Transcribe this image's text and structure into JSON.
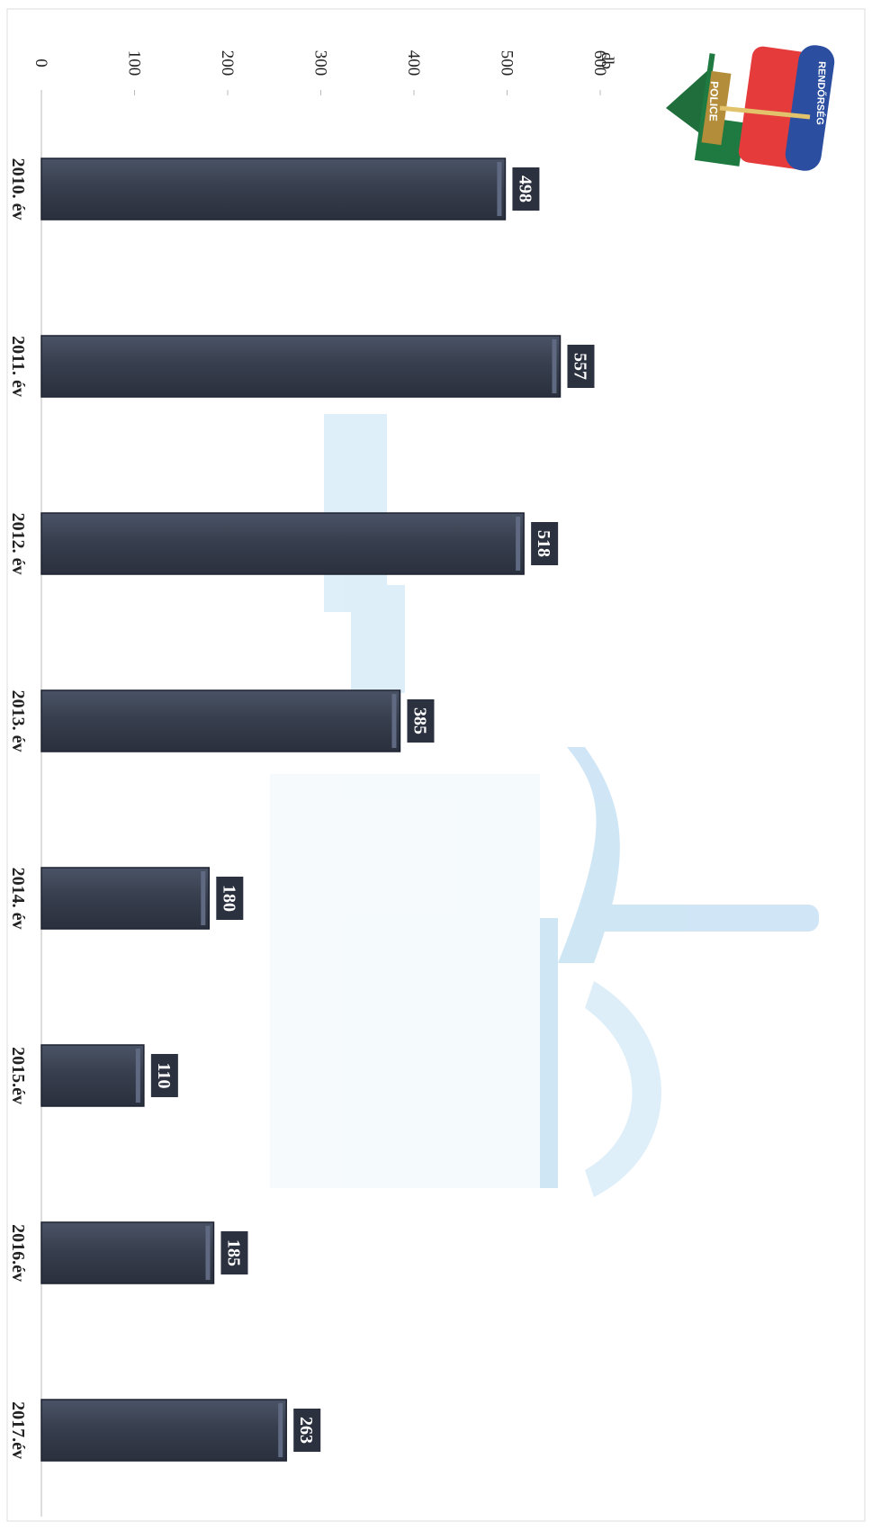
{
  "chart_data": {
    "type": "bar",
    "orientation": "rotated-90-clockwise",
    "unit_label": "db",
    "categories": [
      "2010. év",
      "2011. év",
      "2012. év",
      "2013. év",
      "2014. év",
      "2015.év",
      "2016.év",
      "2017.év"
    ],
    "values": [
      498,
      557,
      518,
      385,
      180,
      110,
      185,
      263
    ],
    "data_labels": [
      "498",
      "557",
      "518",
      "385",
      "180",
      "110",
      "185",
      "263"
    ],
    "ylim": [
      0,
      600
    ],
    "yticks": [
      0,
      100,
      200,
      300,
      400,
      500,
      600
    ],
    "ytick_labels": [
      "0",
      "100",
      "200",
      "300",
      "400",
      "500",
      "600"
    ],
    "grid": false,
    "legend": "none",
    "colors": {
      "bar": "#363d4c",
      "bar_edge": "#1d2230",
      "bar_highlight": "#5f6a82",
      "label_bg": "#2c3140",
      "axis": "#bbbbbb",
      "watermark": "#a9d2ee"
    }
  },
  "logo": {
    "text_police": "POLICE",
    "text_rendorseg": "RENDŐRSÉG"
  }
}
